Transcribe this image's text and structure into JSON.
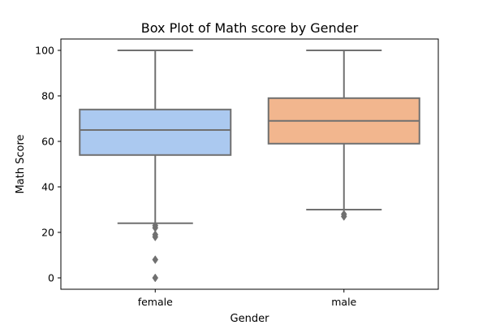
{
  "chart_data": {
    "type": "box",
    "title": "Box Plot of Math score by Gender",
    "xlabel": "Gender",
    "ylabel": "Math Score",
    "ylim": [
      -5,
      105
    ],
    "yticks": [
      0,
      20,
      40,
      60,
      80,
      100
    ],
    "grid": false,
    "boxes": [
      {
        "category": "female",
        "color": "#abc9f0",
        "whisker_low": 24,
        "q1": 54,
        "median": 65,
        "q3": 74,
        "whisker_high": 100,
        "outliers": [
          0,
          8,
          18,
          19,
          22,
          23
        ]
      },
      {
        "category": "male",
        "color": "#f2b68e",
        "whisker_low": 30,
        "q1": 59,
        "median": 69,
        "q3": 79,
        "whisker_high": 100,
        "outliers": [
          27,
          28
        ]
      }
    ],
    "line_color": "#707070"
  }
}
